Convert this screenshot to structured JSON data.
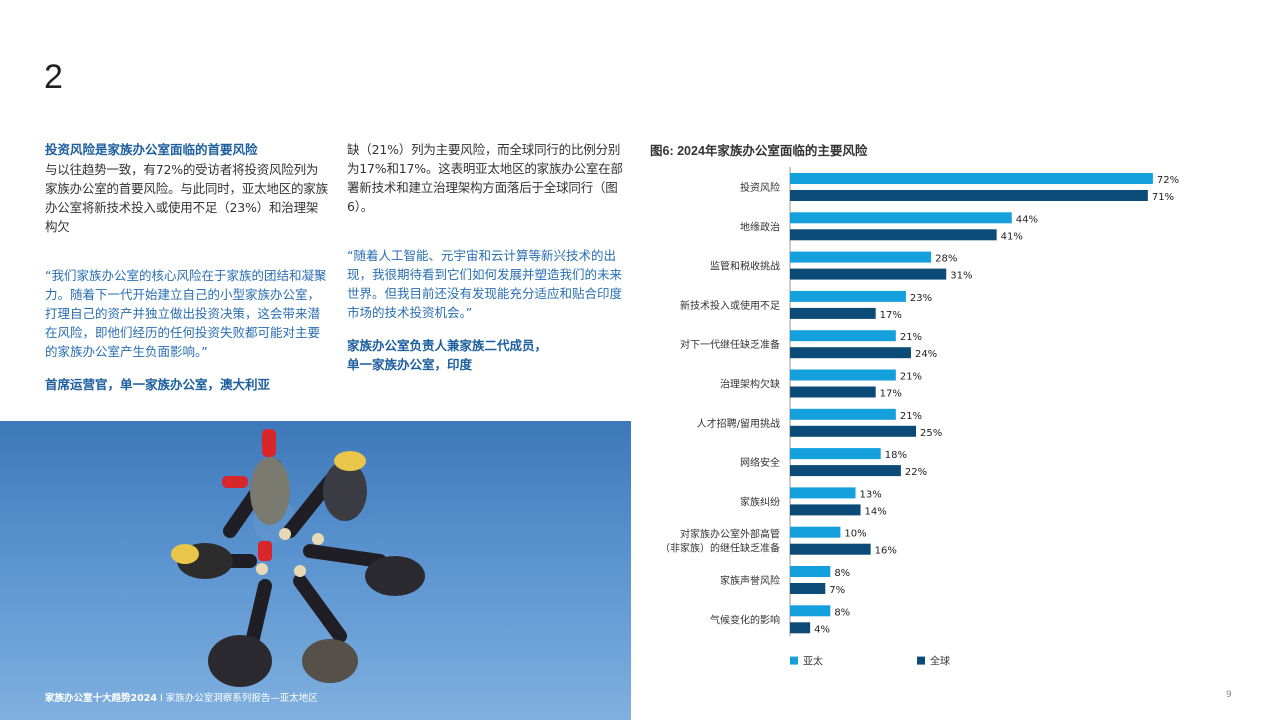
{
  "page": {
    "section_number": "2",
    "footer_bold": "家族办公室十大趋势2024",
    "footer_rest": " I 家族办公室洞察系列报告—亚太地区",
    "page_number": "9"
  },
  "col1": {
    "subhead": "投资风险是家族办公室面临的首要风险",
    "body": "与以往趋势一致，有72%的受访者将投资风险列为家族办公室的首要风险。与此同时，亚太地区的家族办公室将新技术投入或使用不足（23%）和治理架构欠",
    "quote": "“我们家族办公室的核心风险在于家族的团结和凝聚力。随着下一代开始建立自己的小型家族办公室，打理自己的资产并独立做出投资决策，这会带来潜在风险，即他们经历的任何投资失败都可能对主要的家族办公室产生负面影响。”",
    "attribution": "首席运营官，单一家族办公室，澳大利亚"
  },
  "col2": {
    "body": "缺（21%）列为主要风险，而全球同行的比例分别为17%和17%。这表明亚太地区的家族办公室在部署新技术和建立治理架构方面落后于全球同行（图6）。",
    "quote": "“随着人工智能、元宇宙和云计算等新兴技术的出现，我很期待看到它们如何发展并塑造我们的未来世界。但我目前还没有发现能充分适应和贴合印度市场的技术投资机会。”",
    "attribution_line1": "家族办公室负责人兼家族二代成员，",
    "attribution_line2": "单一家族办公室，印度"
  },
  "chart_data": {
    "type": "bar",
    "orientation": "horizontal",
    "title": "图6: 2024年家族办公室面临的主要风险",
    "categories": [
      [
        "投资风险"
      ],
      [
        "地缘政治"
      ],
      [
        "监管和税收挑战"
      ],
      [
        "新技术投入或使用不足"
      ],
      [
        "对下一代继任缺乏准备"
      ],
      [
        "治理架构欠缺"
      ],
      [
        "人才招聘/留用挑战"
      ],
      [
        "网络安全"
      ],
      [
        "家族纠纷"
      ],
      [
        "对家族办公室外部高管",
        "（非家族）的继任缺乏准备"
      ],
      [
        "家族声誉风险"
      ],
      [
        "气候变化的影响"
      ]
    ],
    "series": [
      {
        "name": "亚太",
        "color": "#14a0dc",
        "values": [
          72,
          44,
          28,
          23,
          21,
          21,
          21,
          18,
          13,
          10,
          8,
          8
        ]
      },
      {
        "name": "全球",
        "color": "#0c4a78",
        "values": [
          71,
          41,
          31,
          17,
          24,
          17,
          25,
          22,
          14,
          16,
          7,
          4
        ]
      }
    ],
    "value_suffix": "%",
    "xlim": [
      0,
      80
    ],
    "grid": false,
    "legend_position": "bottom"
  }
}
